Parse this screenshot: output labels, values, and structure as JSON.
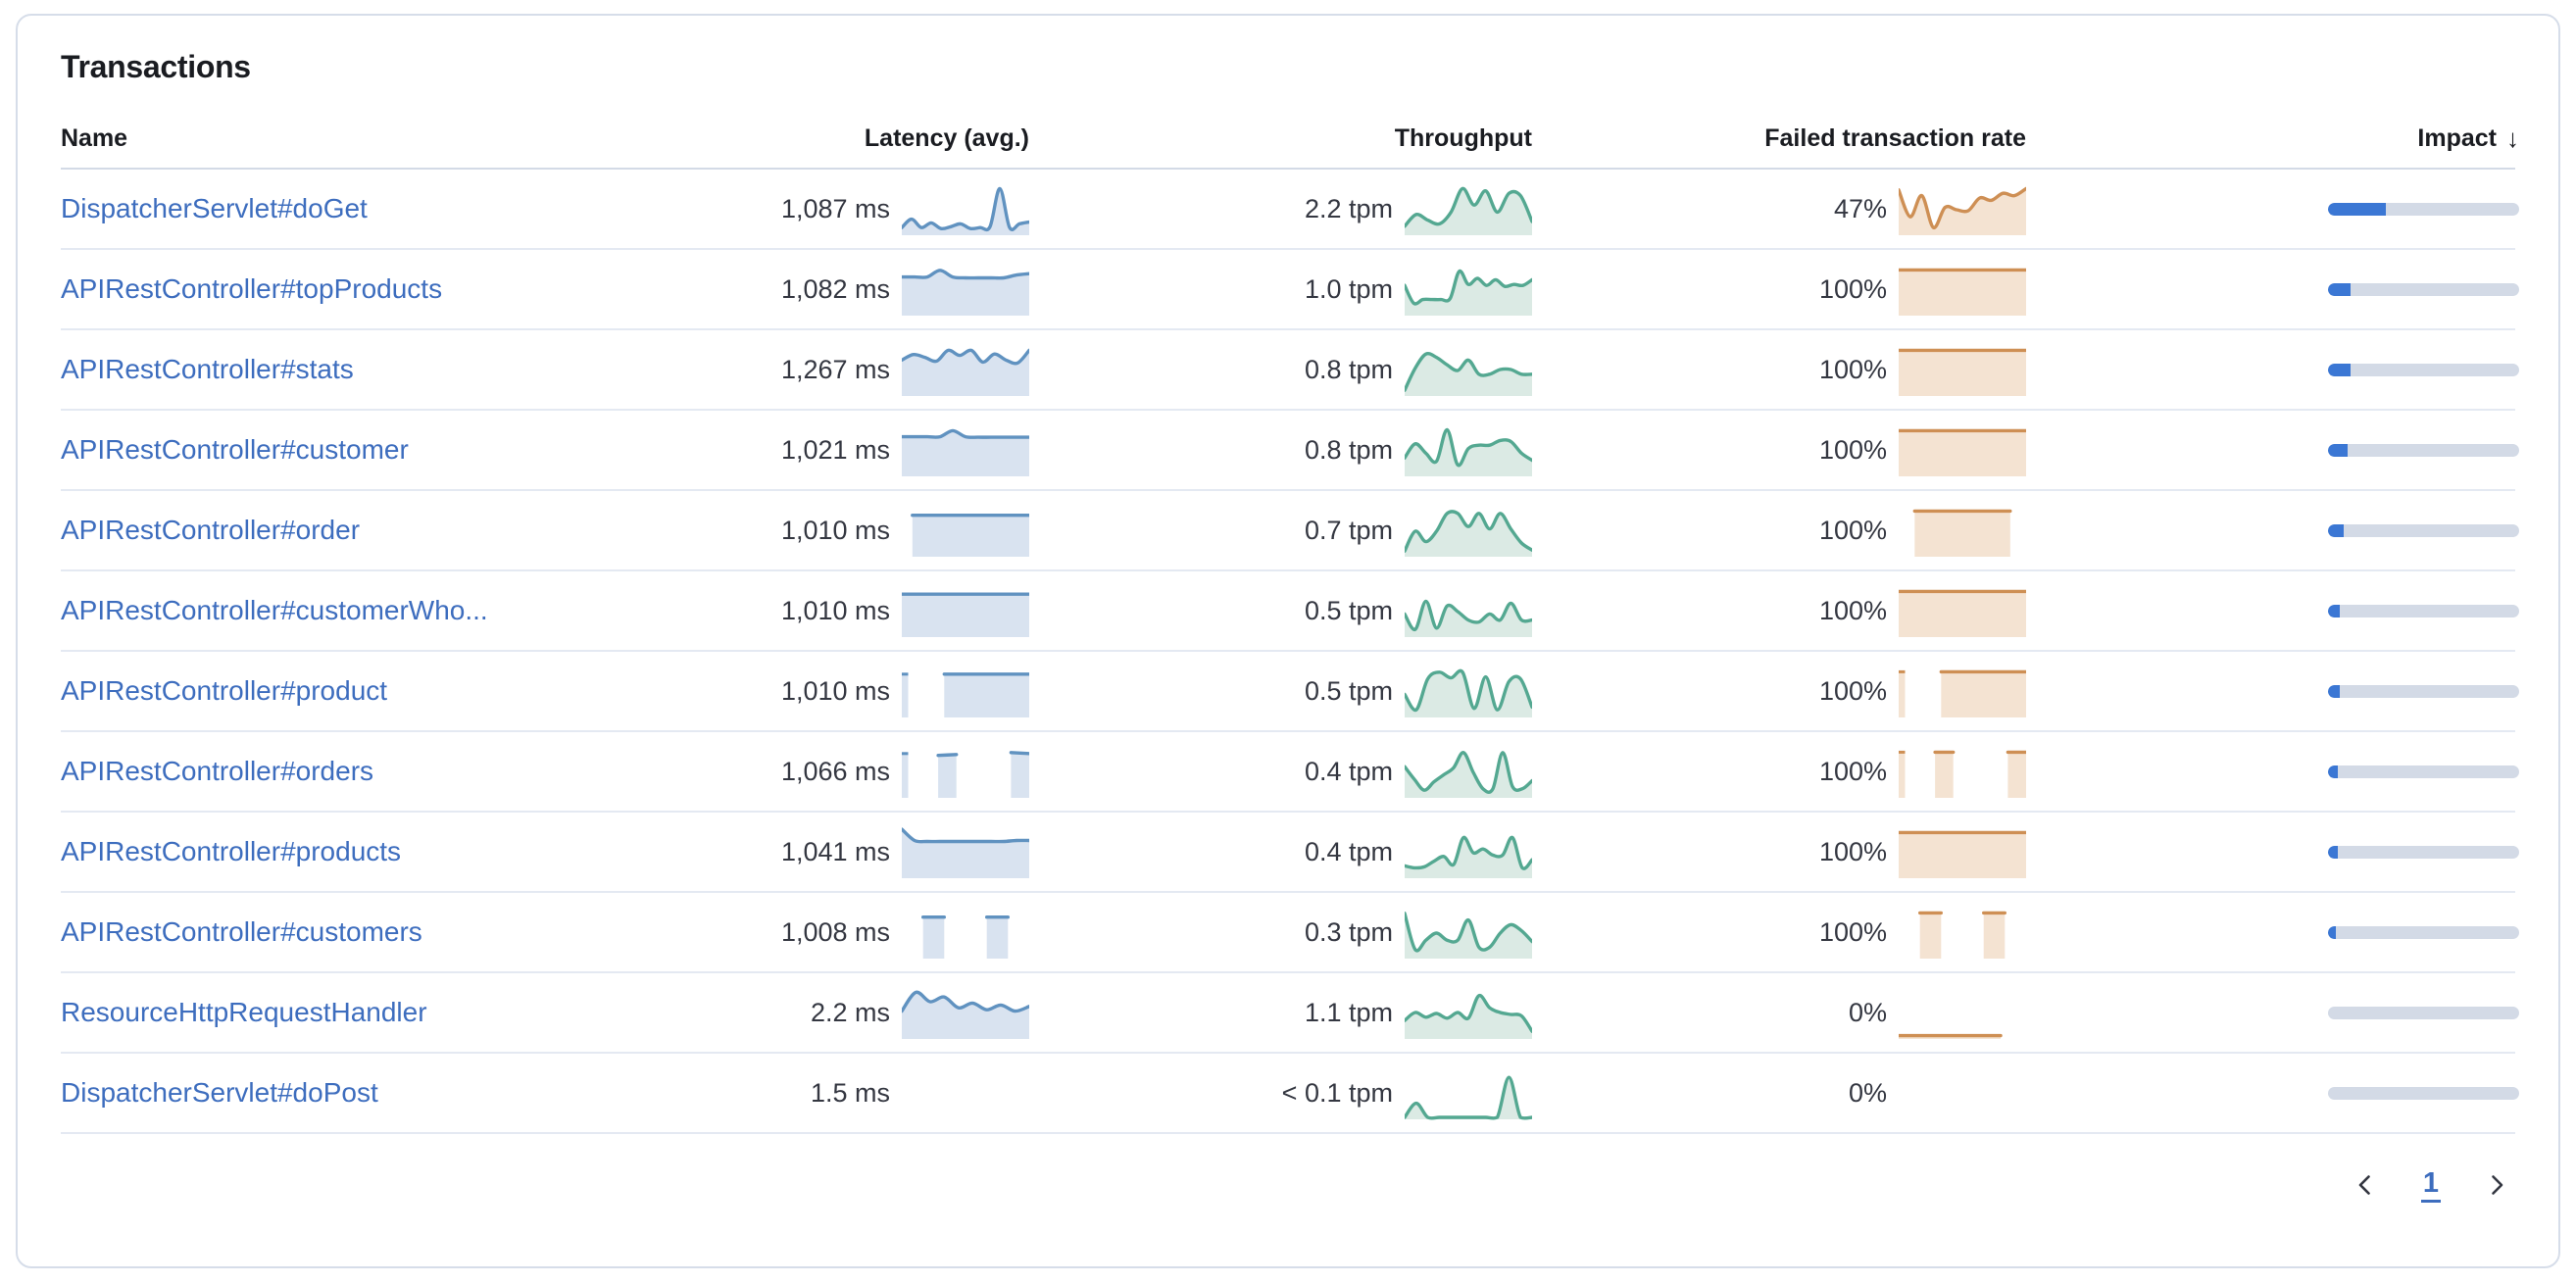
{
  "panel": {
    "title": "Transactions"
  },
  "colors": {
    "link": "#3D6DBE",
    "title_text": "#1A1C21",
    "value_text": "#343741",
    "latency_line": "#6092C0",
    "latency_fill": "#D9E3F0",
    "throughput_line": "#54A891",
    "throughput_fill": "#DBEAE4",
    "failed_line": "#CE8F54",
    "failed_fill": "#F4E3D2",
    "impact_fill": "#3B77D4",
    "impact_track": "#D3DAE6",
    "panel_border": "#D6DDE9",
    "row_border": "#E4E9F2"
  },
  "table": {
    "columns": [
      {
        "label": "Name"
      },
      {
        "label": "Latency (avg.)"
      },
      {
        "label": "Throughput"
      },
      {
        "label": "Failed transaction rate"
      },
      {
        "label": "Impact"
      }
    ],
    "sort_column": "Impact",
    "sort_icon": "↓",
    "rows": [
      {
        "name": "DispatcherServlet#doGet",
        "latency": "1,087 ms",
        "throughput": "2.2 tpm",
        "failed_rate": "47%",
        "impact_pct": 30,
        "latency_spark": [
          0.12,
          0.3,
          0.12,
          0.22,
          0.1,
          0.14,
          0.2,
          0.1,
          0.12,
          0.14,
          0.95,
          0.12,
          0.2,
          0.24
        ],
        "throughput_spark": [
          0.15,
          0.4,
          0.28,
          0.2,
          0.45,
          0.95,
          0.6,
          0.9,
          0.45,
          0.85,
          0.8,
          0.25
        ],
        "failed_spark": [
          0.92,
          0.35,
          0.8,
          0.12,
          0.55,
          0.5,
          0.48,
          0.75,
          0.7,
          0.85,
          0.8,
          0.95
        ]
      },
      {
        "name": "APIRestController#topProducts",
        "latency": "1,082 ms",
        "throughput": "1.0 tpm",
        "failed_rate": "100%",
        "impact_pct": 12,
        "latency_spark": [
          0.78,
          0.78,
          0.78,
          0.92,
          0.78,
          0.76,
          0.76,
          0.76,
          0.76,
          0.82,
          0.85
        ],
        "throughput_spark": [
          0.6,
          0.22,
          0.3,
          0.3,
          0.3,
          0.32,
          0.9,
          0.62,
          0.75,
          0.6,
          0.72,
          0.58,
          0.62,
          0.6,
          0.72
        ],
        "failed_spark": [
          0.93,
          0.93,
          0.93,
          0.93,
          0.93,
          0.93,
          0.93,
          0.93,
          0.93,
          0.93
        ]
      },
      {
        "name": "APIRestController#stats",
        "latency": "1,267 ms",
        "throughput": "0.8 tpm",
        "failed_rate": "100%",
        "impact_pct": 12,
        "latency_spark": [
          0.72,
          0.84,
          0.78,
          0.7,
          0.93,
          0.82,
          0.93,
          0.68,
          0.85,
          0.72,
          0.66,
          0.93
        ],
        "throughput_spark": [
          0.08,
          0.55,
          0.85,
          0.78,
          0.62,
          0.5,
          0.72,
          0.42,
          0.42,
          0.52,
          0.52,
          0.42,
          0.42
        ],
        "failed_spark": [
          0.93,
          0.93,
          0.93,
          0.93,
          0.93,
          0.93,
          0.93,
          0.93,
          0.93,
          0.93
        ]
      },
      {
        "name": "APIRestController#customer",
        "latency": "1,021 ms",
        "throughput": "0.8 tpm",
        "failed_rate": "100%",
        "impact_pct": 10,
        "latency_spark": [
          0.8,
          0.8,
          0.8,
          0.8,
          0.93,
          0.8,
          0.79,
          0.79,
          0.79,
          0.79,
          0.79
        ],
        "throughput_spark": [
          0.35,
          0.65,
          0.45,
          0.28,
          0.95,
          0.2,
          0.55,
          0.62,
          0.62,
          0.72,
          0.7,
          0.45,
          0.3
        ],
        "failed_spark": [
          0.93,
          0.93,
          0.93,
          0.93,
          0.93,
          0.93,
          0.93,
          0.93,
          0.93,
          0.93
        ]
      },
      {
        "name": "APIRestController#order",
        "latency": "1,010 ms",
        "throughput": "0.7 tpm",
        "failed_rate": "100%",
        "impact_pct": 8,
        "latency_spark": [
          null,
          0.84,
          0.84,
          0.84,
          0.84,
          0.84,
          0.84,
          0.84,
          0.84,
          0.84,
          0.84,
          0.84,
          0.84
        ],
        "throughput_spark": [
          0.08,
          0.5,
          0.28,
          0.5,
          0.88,
          0.88,
          0.6,
          0.88,
          0.55,
          0.88,
          0.55,
          0.25,
          0.1
        ],
        "failed_spark": [
          null,
          0.93,
          0.93,
          0.93,
          0.93,
          0.93,
          0.93,
          0.93,
          null
        ]
      },
      {
        "name": "APIRestController#customerWho...",
        "latency": "1,010 ms",
        "throughput": "0.5 tpm",
        "failed_rate": "100%",
        "impact_pct": 6,
        "latency_spark": [
          0.87,
          0.87,
          0.87,
          0.87,
          0.87,
          0.87,
          0.87,
          0.87,
          0.87,
          0.87,
          0.87,
          0.87
        ],
        "throughput_spark": [
          0.45,
          0.12,
          0.72,
          0.15,
          0.62,
          0.5,
          0.32,
          0.28,
          0.45,
          0.32,
          0.68,
          0.32,
          0.32
        ],
        "failed_spark": [
          0.93,
          0.93,
          0.93,
          0.93,
          0.93,
          0.93,
          0.93,
          0.93,
          0.93,
          0.93
        ]
      },
      {
        "name": "APIRestController#product",
        "latency": "1,010 ms",
        "throughput": "0.5 tpm",
        "failed_rate": "100%",
        "impact_pct": 6,
        "latency_spark": [
          0.88,
          null,
          0.88,
          0.88,
          0.88,
          0.88,
          0.88
        ],
        "throughput_spark": [
          0.45,
          0.12,
          0.78,
          0.92,
          0.8,
          0.92,
          0.15,
          0.82,
          0.12,
          0.72,
          0.78,
          0.18
        ],
        "failed_spark": [
          0.93,
          null,
          0.93,
          0.93,
          0.93,
          0.93,
          0.93
        ]
      },
      {
        "name": "APIRestController#orders",
        "latency": "1,066 ms",
        "throughput": "0.4 tpm",
        "failed_rate": "100%",
        "impact_pct": 5,
        "latency_spark": [
          0.9,
          null,
          0.86,
          0.88,
          null,
          null,
          0.92,
          0.9
        ],
        "throughput_spark": [
          0.62,
          0.35,
          0.12,
          0.3,
          0.45,
          0.6,
          0.92,
          0.5,
          0.15,
          0.15,
          0.92,
          0.2,
          0.15,
          0.32
        ],
        "failed_spark": [
          0.93,
          null,
          0.93,
          0.93,
          null,
          null,
          0.93,
          0.93
        ]
      },
      {
        "name": "APIRestController#products",
        "latency": "1,041 ms",
        "throughput": "0.4 tpm",
        "failed_rate": "100%",
        "impact_pct": 5,
        "latency_spark": [
          1.0,
          0.76,
          0.74,
          0.74,
          0.74,
          0.74,
          0.74,
          0.74,
          0.74,
          0.76,
          0.76
        ],
        "throughput_spark": [
          0.22,
          0.18,
          0.2,
          0.32,
          0.42,
          0.25,
          0.82,
          0.5,
          0.58,
          0.45,
          0.45,
          0.82,
          0.18,
          0.35
        ],
        "failed_spark": [
          0.93,
          0.93,
          0.93,
          0.93,
          0.93,
          0.93,
          0.93,
          0.93,
          0.93,
          0.93
        ]
      },
      {
        "name": "APIRestController#customers",
        "latency": "1,008 ms",
        "throughput": "0.3 tpm",
        "failed_rate": "100%",
        "impact_pct": 4,
        "latency_spark": [
          null,
          0.84,
          0.84,
          null,
          0.84,
          0.84,
          null
        ],
        "throughput_spark": [
          0.92,
          0.15,
          0.35,
          0.5,
          0.35,
          0.35,
          0.78,
          0.2,
          0.2,
          0.5,
          0.68,
          0.55,
          0.32
        ],
        "failed_spark": [
          null,
          0.93,
          0.93,
          null,
          0.93,
          0.93,
          null
        ]
      },
      {
        "name": "ResourceHttpRequestHandler",
        "latency": "2.2 ms",
        "throughput": "1.1 tpm",
        "failed_rate": "0%",
        "impact_pct": 0,
        "latency_spark": [
          0.55,
          0.95,
          0.75,
          0.85,
          0.62,
          0.72,
          0.58,
          0.68,
          0.55,
          0.65
        ],
        "throughput_spark": [
          0.35,
          0.52,
          0.42,
          0.5,
          0.4,
          0.52,
          0.4,
          0.88,
          0.62,
          0.52,
          0.48,
          0.45,
          0.12
        ],
        "failed_spark": [
          0.03,
          0.03,
          0.03,
          0.03,
          0.03,
          0.03,
          0.03,
          0.03,
          0.03,
          null,
          null
        ]
      },
      {
        "name": "DispatcherServlet#doPost",
        "latency": "1.5 ms",
        "throughput": "< 0.1 tpm",
        "failed_rate": "0%",
        "impact_pct": 0,
        "latency_spark": [],
        "throughput_spark": [
          0,
          0.3,
          0,
          0,
          0,
          0,
          0,
          0,
          0,
          0.85,
          0,
          0
        ],
        "failed_spark": []
      }
    ]
  },
  "pagination": {
    "page": "1"
  }
}
